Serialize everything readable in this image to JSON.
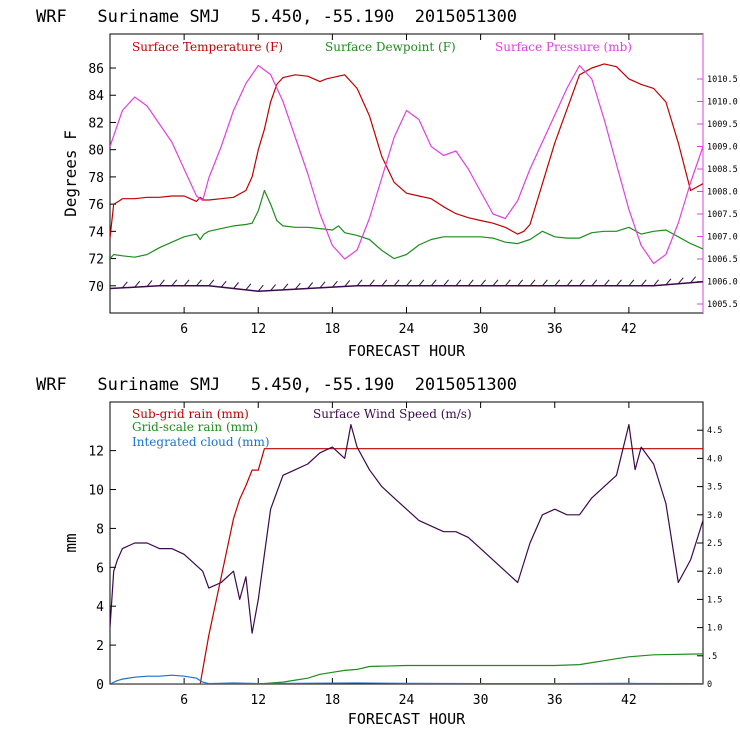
{
  "panels": [
    {
      "title": "WRF   Suriname SMJ   5.450, -55.190  2015051300",
      "chart_data": {
        "type": "line",
        "xlabel": "FORECAST HOUR",
        "ylabel": "Degrees F",
        "xlim": [
          0,
          48
        ],
        "ylim": [
          68,
          88.5
        ],
        "xticks": [
          6,
          12,
          18,
          24,
          30,
          36,
          42
        ],
        "yticks": [
          70,
          72,
          74,
          76,
          78,
          80,
          82,
          84,
          86
        ],
        "y2lim": [
          1005.3,
          1011.5
        ],
        "y2ticks": [
          1005.5,
          1006.0,
          1006.5,
          1007.0,
          1007.5,
          1008.0,
          1008.5,
          1009.0,
          1009.5,
          1010.0,
          1010.5
        ],
        "legend": [
          "Surface Temperature (F)",
          "Surface Dewpoint (F)",
          "Surface Pressure (mb)"
        ],
        "series": [
          {
            "name": "Surface Temperature (F)",
            "color": "#c00000",
            "axis": "left",
            "x": [
              0,
              0.3,
              0.7,
              1,
              2,
              3,
              4,
              5,
              6,
              6.5,
              7,
              7.3,
              7.6,
              8,
              9,
              10,
              11,
              11.5,
              12,
              12.5,
              13,
              13.5,
              14,
              15,
              16,
              17,
              17.5,
              18,
              19,
              20,
              21,
              22,
              23,
              24,
              25,
              26,
              27,
              28,
              29,
              30,
              31,
              32,
              33,
              33.5,
              34,
              35,
              36,
              37,
              38,
              39,
              40,
              41,
              42,
              43,
              44,
              45,
              46,
              47,
              48
            ],
            "y": [
              73.5,
              76,
              76.2,
              76.4,
              76.4,
              76.5,
              76.5,
              76.6,
              76.6,
              76.4,
              76.2,
              76.5,
              76.3,
              76.3,
              76.4,
              76.5,
              77,
              78,
              80,
              81.5,
              83.5,
              84.8,
              85.3,
              85.5,
              85.4,
              85,
              85.2,
              85.3,
              85.5,
              84.5,
              82.5,
              79.5,
              77.6,
              76.8,
              76.6,
              76.4,
              75.8,
              75.3,
              75,
              74.8,
              74.6,
              74.3,
              73.8,
              74,
              74.5,
              77.5,
              80.5,
              83,
              85.5,
              86,
              86.3,
              86.1,
              85.2,
              84.8,
              84.5,
              83.5,
              80.5,
              77,
              77.5
            ]
          },
          {
            "name": "Surface Dewpoint (F)",
            "color": "#1e8c1e",
            "axis": "left",
            "x": [
              0,
              0.3,
              1,
              2,
              3,
              4,
              5,
              6,
              7,
              7.3,
              7.6,
              8,
              9,
              10,
              11,
              11.5,
              12,
              12.5,
              13,
              13.5,
              14,
              15,
              16,
              17,
              18,
              18.5,
              19,
              20,
              21,
              22,
              23,
              24,
              25,
              26,
              27,
              28,
              29,
              30,
              31,
              32,
              33,
              34,
              35,
              36,
              37,
              38,
              39,
              40,
              41,
              42,
              43,
              44,
              45,
              46,
              47,
              48
            ],
            "y": [
              72,
              72.3,
              72.2,
              72.1,
              72.3,
              72.8,
              73.2,
              73.6,
              73.8,
              73.4,
              73.8,
              74,
              74.2,
              74.4,
              74.5,
              74.6,
              75.5,
              77,
              76,
              74.8,
              74.4,
              74.3,
              74.3,
              74.2,
              74.1,
              74.4,
              73.9,
              73.7,
              73.4,
              72.6,
              72,
              72.3,
              73,
              73.4,
              73.6,
              73.6,
              73.6,
              73.6,
              73.5,
              73.2,
              73.1,
              73.4,
              74,
              73.6,
              73.5,
              73.5,
              73.9,
              74,
              74,
              74.3,
              73.8,
              74,
              74.1,
              73.6,
              73.1,
              72.7
            ]
          },
          {
            "name": "Surface Pressure (mb)",
            "color": "#e040e0",
            "axis": "right",
            "x": [
              0,
              1,
              2,
              3,
              4,
              5,
              6,
              7,
              7.5,
              8,
              9,
              10,
              11,
              12,
              13,
              14,
              15,
              16,
              17,
              18,
              19,
              20,
              21,
              22,
              23,
              24,
              25,
              26,
              27,
              28,
              29,
              30,
              31,
              32,
              33,
              34,
              35,
              36,
              37,
              38,
              39,
              40,
              41,
              42,
              43,
              44,
              45,
              46,
              47,
              48
            ],
            "y": [
              1009.0,
              1009.8,
              1010.1,
              1009.9,
              1009.5,
              1009.1,
              1008.5,
              1007.9,
              1007.8,
              1008.3,
              1009.0,
              1009.8,
              1010.4,
              1010.8,
              1010.6,
              1010.0,
              1009.2,
              1008.4,
              1007.5,
              1006.8,
              1006.5,
              1006.7,
              1007.4,
              1008.3,
              1009.2,
              1009.8,
              1009.6,
              1009.0,
              1008.8,
              1008.9,
              1008.5,
              1008.0,
              1007.5,
              1007.4,
              1007.8,
              1008.5,
              1009.1,
              1009.7,
              1010.3,
              1010.8,
              1010.5,
              1009.6,
              1008.6,
              1007.6,
              1006.8,
              1006.4,
              1006.6,
              1007.3,
              1008.2,
              1009.0
            ]
          },
          {
            "name": "Surface Wind",
            "color": "#3a0a4a",
            "axis": "left",
            "x": [
              0,
              4,
              8,
              12,
              16,
              20,
              24,
              28,
              32,
              36,
              40,
              44,
              48
            ],
            "y": [
              69.8,
              70,
              70,
              69.6,
              69.8,
              70,
              70,
              70,
              70,
              70,
              70,
              70,
              70.3
            ]
          }
        ]
      }
    },
    {
      "title": "WRF   Suriname SMJ   5.450, -55.190  2015051300",
      "chart_data": {
        "type": "line",
        "xlabel": "FORECAST HOUR",
        "ylabel": "mm",
        "xlim": [
          0,
          48
        ],
        "ylim": [
          0,
          14.5
        ],
        "xticks": [
          6,
          12,
          18,
          24,
          30,
          36,
          42
        ],
        "yticks": [
          0,
          2,
          4,
          6,
          8,
          10,
          12
        ],
        "y2lim": [
          0,
          5.0
        ],
        "y2ticks": [
          0,
          0.5,
          1.0,
          1.5,
          2.0,
          2.5,
          3.0,
          3.5,
          4.0,
          4.5
        ],
        "y2ticklabels": [
          "0",
          ".5",
          "1.0",
          "1.5",
          "2.0",
          "2.5",
          "3.0",
          "3.5",
          "4.0",
          "4.5"
        ],
        "legend": [
          "Sub-grid rain (mm)",
          "Grid-scale rain (mm)",
          "Integrated cloud (mm)",
          "Surface Wind Speed (m/s)"
        ],
        "series": [
          {
            "name": "Sub-grid rain (mm)",
            "color": "#c00000",
            "axis": "left",
            "x": [
              0,
              7.3,
              8,
              9,
              10,
              10.5,
              11,
              11.5,
              12,
              12.5,
              48
            ],
            "y": [
              0,
              0,
              2.5,
              5.5,
              8.5,
              9.5,
              10.2,
              11,
              11,
              12.1,
              12.1
            ]
          },
          {
            "name": "Grid-scale rain (mm)",
            "color": "#1e8c1e",
            "axis": "left",
            "x": [
              0,
              12,
              14,
              15,
              16,
              17,
              18,
              19,
              20,
              21,
              24,
              30,
              36,
              38,
              39,
              40,
              41,
              42,
              44,
              48
            ],
            "y": [
              0,
              0,
              0.1,
              0.2,
              0.3,
              0.5,
              0.6,
              0.7,
              0.75,
              0.9,
              0.95,
              0.95,
              0.95,
              1.0,
              1.1,
              1.2,
              1.3,
              1.4,
              1.5,
              1.55
            ]
          },
          {
            "name": "Integrated cloud (mm)",
            "color": "#1e6fd0",
            "axis": "left",
            "x": [
              0,
              0.5,
              1,
              2,
              3,
              4,
              5,
              6,
              7,
              7.5,
              8,
              10,
              12,
              20,
              24,
              30,
              36,
              42,
              48
            ],
            "y": [
              0,
              0.15,
              0.25,
              0.35,
              0.4,
              0.4,
              0.45,
              0.4,
              0.3,
              0.1,
              0.02,
              0.05,
              0.02,
              0.05,
              0.03,
              0.02,
              0.02,
              0.03,
              0.02
            ]
          },
          {
            "name": "Surface Wind Speed (m/s)",
            "color": "#3a0a4a",
            "axis": "right",
            "x": [
              0,
              0.3,
              0.6,
              1,
              2,
              3,
              4,
              5,
              6,
              7,
              7.5,
              8,
              9,
              10,
              10.5,
              11,
              11.5,
              12,
              12.5,
              13,
              14,
              15,
              16,
              17,
              18,
              19,
              19.5,
              20,
              21,
              22,
              23,
              24,
              25,
              26,
              27,
              28,
              29,
              30,
              31,
              32,
              33,
              34,
              35,
              36,
              37,
              38,
              39,
              40,
              41,
              42,
              42.5,
              43,
              44,
              45,
              46,
              47,
              48
            ],
            "y": [
              1.0,
              2.0,
              2.2,
              2.4,
              2.5,
              2.5,
              2.4,
              2.4,
              2.3,
              2.1,
              2.0,
              1.7,
              1.8,
              2.0,
              1.5,
              1.9,
              0.9,
              1.5,
              2.3,
              3.1,
              3.7,
              3.8,
              3.9,
              4.1,
              4.2,
              4.0,
              4.6,
              4.2,
              3.8,
              3.5,
              3.3,
              3.1,
              2.9,
              2.8,
              2.7,
              2.7,
              2.6,
              2.4,
              2.2,
              2.0,
              1.8,
              2.5,
              3.0,
              3.1,
              3.0,
              3.0,
              3.3,
              3.5,
              3.7,
              4.6,
              3.8,
              4.2,
              3.9,
              3.2,
              1.8,
              2.2,
              2.9
            ]
          }
        ]
      }
    }
  ]
}
